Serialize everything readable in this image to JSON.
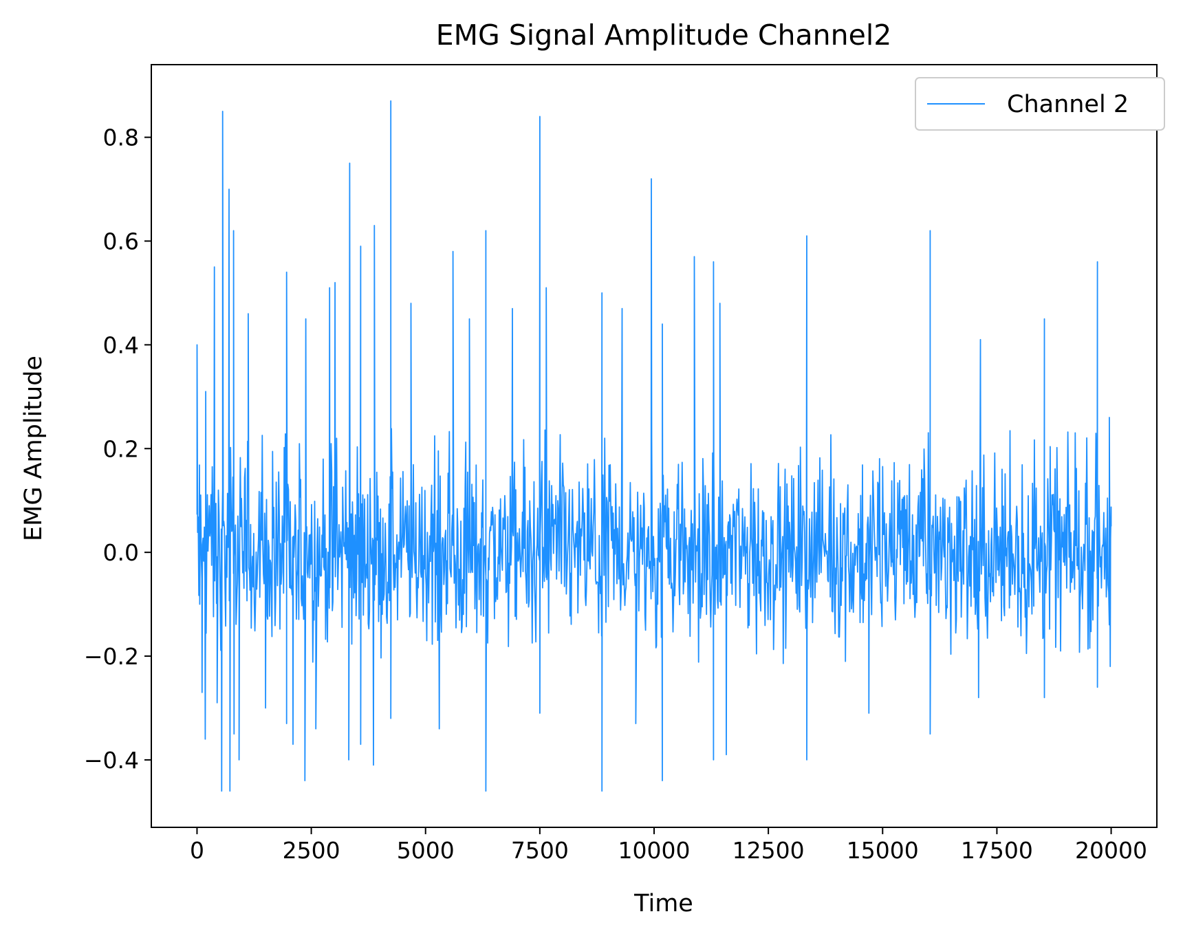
{
  "chart_data": {
    "type": "line",
    "title": "EMG Signal Amplitude Channel2",
    "xlabel": "Time",
    "ylabel": "EMG Amplitude",
    "xlim": [
      -1000,
      21000
    ],
    "ylim": [
      -0.53,
      0.94
    ],
    "xticks": [
      0,
      2500,
      5000,
      7500,
      10000,
      12500,
      15000,
      17500,
      20000
    ],
    "xtick_labels": [
      "0",
      "2500",
      "5000",
      "7500",
      "10000",
      "12500",
      "15000",
      "17500",
      "20000"
    ],
    "yticks": [
      -0.4,
      -0.2,
      0.0,
      0.2,
      0.4,
      0.6,
      0.8
    ],
    "ytick_labels": [
      "−0.4",
      "−0.2",
      "0.0",
      "0.2",
      "0.4",
      "0.6",
      "0.8"
    ],
    "grid": false,
    "legend_position": "top-right",
    "series": [
      {
        "name": "Channel 2",
        "color": "#1e90ff",
        "x_start": 0,
        "x_end": 20000,
        "typical_band": [
          -0.12,
          0.12
        ],
        "peaks": [
          {
            "x": 0,
            "y": 0.4
          },
          {
            "x": 60,
            "y": -0.1
          },
          {
            "x": 110,
            "y": -0.27
          },
          {
            "x": 180,
            "y": -0.36
          },
          {
            "x": 190,
            "y": 0.31
          },
          {
            "x": 380,
            "y": 0.55
          },
          {
            "x": 440,
            "y": -0.29
          },
          {
            "x": 540,
            "y": -0.46
          },
          {
            "x": 560,
            "y": 0.85
          },
          {
            "x": 700,
            "y": 0.7
          },
          {
            "x": 720,
            "y": -0.46
          },
          {
            "x": 800,
            "y": 0.62
          },
          {
            "x": 810,
            "y": -0.35
          },
          {
            "x": 920,
            "y": -0.4
          },
          {
            "x": 1120,
            "y": 0.46
          },
          {
            "x": 1500,
            "y": -0.3
          },
          {
            "x": 1960,
            "y": -0.33
          },
          {
            "x": 1960,
            "y": 0.54
          },
          {
            "x": 2100,
            "y": -0.37
          },
          {
            "x": 2360,
            "y": -0.44
          },
          {
            "x": 2380,
            "y": 0.45
          },
          {
            "x": 2600,
            "y": -0.34
          },
          {
            "x": 2900,
            "y": 0.51
          },
          {
            "x": 3020,
            "y": 0.52
          },
          {
            "x": 3320,
            "y": -0.4
          },
          {
            "x": 3340,
            "y": 0.75
          },
          {
            "x": 3580,
            "y": 0.59
          },
          {
            "x": 3580,
            "y": -0.37
          },
          {
            "x": 3860,
            "y": -0.41
          },
          {
            "x": 3880,
            "y": 0.63
          },
          {
            "x": 4240,
            "y": 0.87
          },
          {
            "x": 4240,
            "y": -0.32
          },
          {
            "x": 4680,
            "y": 0.48
          },
          {
            "x": 5300,
            "y": -0.34
          },
          {
            "x": 5600,
            "y": 0.58
          },
          {
            "x": 5960,
            "y": 0.45
          },
          {
            "x": 6320,
            "y": 0.62
          },
          {
            "x": 6320,
            "y": -0.46
          },
          {
            "x": 6900,
            "y": 0.47
          },
          {
            "x": 7500,
            "y": 0.84
          },
          {
            "x": 7500,
            "y": -0.31
          },
          {
            "x": 7640,
            "y": 0.51
          },
          {
            "x": 8860,
            "y": 0.5
          },
          {
            "x": 8860,
            "y": -0.46
          },
          {
            "x": 9300,
            "y": 0.47
          },
          {
            "x": 9600,
            "y": -0.33
          },
          {
            "x": 9940,
            "y": 0.72
          },
          {
            "x": 10180,
            "y": -0.44
          },
          {
            "x": 10180,
            "y": 0.44
          },
          {
            "x": 10880,
            "y": 0.57
          },
          {
            "x": 11300,
            "y": -0.4
          },
          {
            "x": 11300,
            "y": 0.56
          },
          {
            "x": 11440,
            "y": 0.48
          },
          {
            "x": 11580,
            "y": -0.39
          },
          {
            "x": 13340,
            "y": 0.61
          },
          {
            "x": 13340,
            "y": -0.4
          },
          {
            "x": 14700,
            "y": -0.31
          },
          {
            "x": 16040,
            "y": 0.62
          },
          {
            "x": 16040,
            "y": -0.35
          },
          {
            "x": 17100,
            "y": -0.28
          },
          {
            "x": 17140,
            "y": 0.41
          },
          {
            "x": 18540,
            "y": 0.45
          },
          {
            "x": 18540,
            "y": -0.28
          },
          {
            "x": 19700,
            "y": 0.56
          },
          {
            "x": 19700,
            "y": -0.26
          },
          {
            "x": 19960,
            "y": 0.26
          },
          {
            "x": 19980,
            "y": -0.22
          },
          {
            "x": 20000,
            "y": 0.05
          }
        ]
      }
    ]
  }
}
